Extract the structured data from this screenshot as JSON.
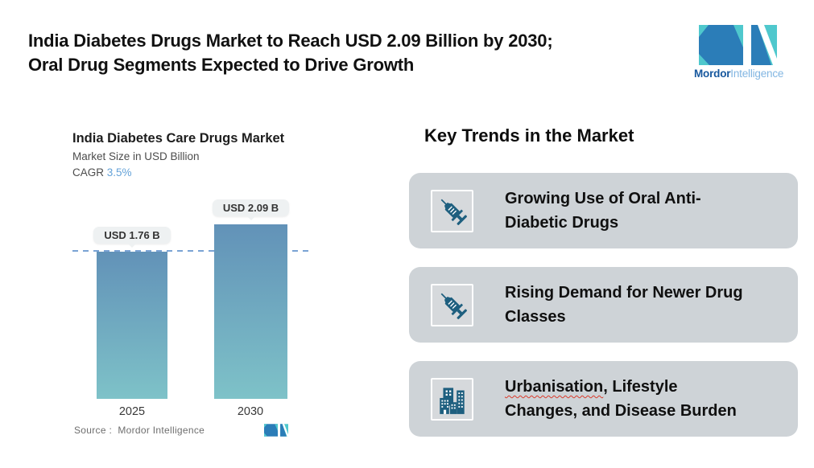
{
  "header": {
    "title_line1": "India Diabetes Drugs Market to Reach USD 2.09 Billion by 2030;",
    "title_line2": "Oral Drug Segments Expected to Drive Growth",
    "brand": {
      "name_bold": "Mordor",
      "name_light": "Intelligence"
    }
  },
  "chart_data": {
    "type": "bar",
    "title": "India Diabetes Care Drugs Market",
    "subtitle": "Market Size in USD Billion",
    "cagr_label": "CAGR",
    "cagr_value": "3.5%",
    "categories": [
      "2025",
      "2030"
    ],
    "values": [
      1.76,
      2.09
    ],
    "value_labels": [
      "USD 1.76 B",
      "USD 2.09 B"
    ],
    "reference_line": 1.76,
    "ylabel": "Market Size in USD Billion",
    "source": "Source :  Mordor Intelligence",
    "legend": "none",
    "grid": "off",
    "colors": {
      "bar_top": "#6292b8",
      "bar_bottom": "#7ec2c8",
      "dash": "#7aa3d4"
    }
  },
  "key_trends": {
    "heading": "Key Trends in the Market",
    "cards": [
      {
        "icon": "syringe-icon",
        "line1": "Growing Use of Oral Anti-",
        "line2": "Diabetic Drugs"
      },
      {
        "icon": "syringe-icon",
        "line1": "Rising Demand for Newer Drug",
        "line2": "Classes"
      },
      {
        "icon": "buildings-icon",
        "flagged_word": "Urbanisation",
        "line1_rest": ", Lifestyle",
        "line2": "Changes, and Disease Burden"
      }
    ]
  },
  "colors": {
    "accent_teal": "#4fc8cd",
    "accent_blue": "#2b7db8",
    "icon_blue": "#1e5f7f",
    "card_gray": "#ced3d7"
  }
}
